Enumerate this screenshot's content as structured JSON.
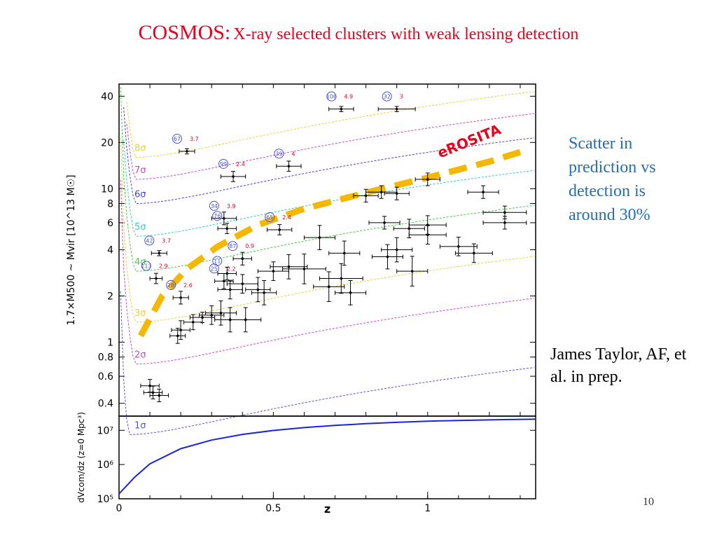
{
  "slide": {
    "title_lead": "COSMOS:",
    "title_rest": "X-ray selected clusters with weak lensing detection",
    "side_note": "Scatter in prediction vs detection is around 30%",
    "credit": "James Taylor, AF, et al. in prep.",
    "page_number": "10"
  },
  "colors": {
    "title": "#e8001c",
    "note": "#1f6fb5",
    "erosita": "#f5b800",
    "volume_curve": "#1a24d8"
  },
  "chart_data": [
    {
      "type": "scatter",
      "xlabel": "z",
      "ylabel": "1.7×M500 ~ Mvir [10^13 M☉]",
      "x_scale": "linear",
      "y_scale": "log",
      "xlim": [
        0,
        1.35
      ],
      "ylim": [
        0.33,
        48
      ],
      "y_ticks": [
        0.4,
        0.6,
        0.8,
        1,
        2,
        4,
        6,
        8,
        10,
        20,
        40
      ],
      "y_tick_labels": [
        "0.4",
        "0.6",
        "0.8",
        "1",
        "2",
        "4",
        "6",
        "8",
        "10",
        "20",
        "40"
      ],
      "grid": false,
      "sigma_curves": [
        {
          "label": "1σ",
          "min": 0.25,
          "zmin": 0.03,
          "color": "#5555cc"
        },
        {
          "label": "2σ",
          "min": 0.72,
          "zmin": 0.05,
          "color": "#cc44cc"
        },
        {
          "label": "3σ",
          "min": 1.35,
          "zmin": 0.05,
          "color": "#e0d33a"
        },
        {
          "label": "4σ",
          "min": 2.9,
          "zmin": 0.05,
          "color": "#44cc44"
        },
        {
          "label": "5σ",
          "min": 4.9,
          "zmin": 0.05,
          "color": "#33cccc"
        },
        {
          "label": "6σ",
          "min": 8.0,
          "zmin": 0.05,
          "color": "#4444cc"
        },
        {
          "label": "7σ",
          "min": 11.5,
          "zmin": 0.05,
          "color": "#cc44cc"
        },
        {
          "label": "8σ",
          "min": 16.0,
          "zmin": 0.05,
          "color": "#e0d33a"
        }
      ],
      "erosita_limit": {
        "label": "eROSITA",
        "x": [
          0.07,
          0.14,
          0.22,
          0.32,
          0.45,
          0.6,
          0.8,
          1.0,
          1.2,
          1.3
        ],
        "y": [
          1.1,
          2.0,
          3.0,
          4.2,
          5.8,
          7.4,
          9.4,
          11.8,
          15.0,
          17.3
        ]
      },
      "points": [
        {
          "x": 0.22,
          "y": 17.5,
          "xerr": 0.025,
          "yerr": 0.04,
          "id": "67",
          "sn": "3.7"
        },
        {
          "x": 0.72,
          "y": 33,
          "xerr": 0.04,
          "yerr": 0.04,
          "id": "106",
          "sn": "4.9"
        },
        {
          "x": 0.9,
          "y": 33,
          "xerr": 0.06,
          "yerr": 0.04,
          "id": "32",
          "sn": "3"
        },
        {
          "x": 0.37,
          "y": 12,
          "xerr": 0.04,
          "yerr": 0.08,
          "id": "99",
          "sn": "2.4"
        },
        {
          "x": 0.55,
          "y": 14,
          "xerr": 0.04,
          "yerr": 0.08,
          "id": "39",
          "sn": "4"
        },
        {
          "x": 0.34,
          "y": 6.4,
          "xerr": 0.04,
          "yerr": 0.1,
          "id": "34",
          "sn": "3.9"
        },
        {
          "x": 0.35,
          "y": 5.5,
          "xerr": 0.03,
          "yerr": 0.08,
          "id": "76",
          "sn": ""
        },
        {
          "x": 0.52,
          "y": 5.4,
          "xerr": 0.04,
          "yerr": 0.08,
          "id": "65",
          "sn": "2.4"
        },
        {
          "x": 0.13,
          "y": 3.8,
          "xerr": 0.025,
          "yerr": 0.04,
          "id": "42",
          "sn": "3.7"
        },
        {
          "x": 0.4,
          "y": 3.5,
          "xerr": 0.03,
          "yerr": 0.1,
          "id": "87",
          "sn": "0.9"
        },
        {
          "x": 0.12,
          "y": 2.6,
          "xerr": 0.02,
          "yerr": 0.08,
          "id": "113",
          "sn": "2.9"
        },
        {
          "x": 0.2,
          "y": 1.95,
          "xerr": 0.025,
          "yerr": 0.1,
          "id": "28",
          "sn": "2.6"
        },
        {
          "x": 0.34,
          "y": 2.5,
          "xerr": 0.03,
          "yerr": 0.12,
          "id": "25",
          "sn": "2.2"
        },
        {
          "x": 0.35,
          "y": 2.8,
          "xerr": 0.03,
          "yerr": 0.1,
          "id": "11",
          "sn": ""
        },
        {
          "x": 0.19,
          "y": 1.1,
          "xerr": 0.025,
          "yerr": 0.12,
          "id": "",
          "sn": ""
        },
        {
          "x": 0.2,
          "y": 1.2,
          "xerr": 0.03,
          "yerr": 0.15,
          "id": "",
          "sn": ""
        },
        {
          "x": 0.24,
          "y": 1.35,
          "xerr": 0.03,
          "yerr": 0.12,
          "id": "",
          "sn": ""
        },
        {
          "x": 0.27,
          "y": 1.45,
          "xerr": 0.04,
          "yerr": 0.08,
          "id": "",
          "sn": ""
        },
        {
          "x": 0.3,
          "y": 1.5,
          "xerr": 0.04,
          "yerr": 0.15,
          "id": "",
          "sn": ""
        },
        {
          "x": 0.33,
          "y": 1.55,
          "xerr": 0.05,
          "yerr": 0.2,
          "id": "",
          "sn": ""
        },
        {
          "x": 0.36,
          "y": 1.4,
          "xerr": 0.05,
          "yerr": 0.2,
          "id": "",
          "sn": ""
        },
        {
          "x": 0.41,
          "y": 1.4,
          "xerr": 0.05,
          "yerr": 0.2,
          "id": "",
          "sn": ""
        },
        {
          "x": 0.1,
          "y": 0.52,
          "xerr": 0.03,
          "yerr": 0.1,
          "id": "",
          "sn": ""
        },
        {
          "x": 0.11,
          "y": 0.47,
          "xerr": 0.03,
          "yerr": 0.1,
          "id": "",
          "sn": ""
        },
        {
          "x": 0.13,
          "y": 0.45,
          "xerr": 0.03,
          "yerr": 0.1,
          "id": "",
          "sn": ""
        },
        {
          "x": 0.36,
          "y": 2.2,
          "xerr": 0.04,
          "yerr": 0.15,
          "id": "",
          "sn": ""
        },
        {
          "x": 0.4,
          "y": 2.4,
          "xerr": 0.05,
          "yerr": 0.15,
          "id": "",
          "sn": ""
        },
        {
          "x": 0.45,
          "y": 2.2,
          "xerr": 0.04,
          "yerr": 0.2,
          "id": "",
          "sn": ""
        },
        {
          "x": 0.47,
          "y": 2.1,
          "xerr": 0.04,
          "yerr": 0.2,
          "id": "",
          "sn": ""
        },
        {
          "x": 0.5,
          "y": 2.9,
          "xerr": 0.05,
          "yerr": 0.15,
          "id": "",
          "sn": ""
        },
        {
          "x": 0.55,
          "y": 3.1,
          "xerr": 0.06,
          "yerr": 0.2,
          "id": "",
          "sn": ""
        },
        {
          "x": 0.6,
          "y": 3.0,
          "xerr": 0.07,
          "yerr": 0.25,
          "id": "",
          "sn": ""
        },
        {
          "x": 0.65,
          "y": 4.8,
          "xerr": 0.05,
          "yerr": 0.2,
          "id": "",
          "sn": ""
        },
        {
          "x": 0.68,
          "y": 2.3,
          "xerr": 0.05,
          "yerr": 0.25,
          "id": "",
          "sn": ""
        },
        {
          "x": 0.72,
          "y": 2.6,
          "xerr": 0.07,
          "yerr": 0.25,
          "id": "",
          "sn": ""
        },
        {
          "x": 0.73,
          "y": 3.8,
          "xerr": 0.05,
          "yerr": 0.2,
          "id": "",
          "sn": ""
        },
        {
          "x": 0.75,
          "y": 2.1,
          "xerr": 0.05,
          "yerr": 0.2,
          "id": "",
          "sn": ""
        },
        {
          "x": 0.8,
          "y": 9.0,
          "xerr": 0.04,
          "yerr": 0.1,
          "id": "",
          "sn": ""
        },
        {
          "x": 0.85,
          "y": 9.5,
          "xerr": 0.05,
          "yerr": 0.1,
          "id": "",
          "sn": ""
        },
        {
          "x": 0.86,
          "y": 6.0,
          "xerr": 0.05,
          "yerr": 0.1,
          "id": "",
          "sn": ""
        },
        {
          "x": 0.87,
          "y": 3.6,
          "xerr": 0.05,
          "yerr": 0.2,
          "id": "",
          "sn": ""
        },
        {
          "x": 0.9,
          "y": 9.3,
          "xerr": 0.04,
          "yerr": 0.1,
          "id": "",
          "sn": ""
        },
        {
          "x": 0.9,
          "y": 4.0,
          "xerr": 0.05,
          "yerr": 0.2,
          "id": "",
          "sn": ""
        },
        {
          "x": 0.94,
          "y": 5.5,
          "xerr": 0.05,
          "yerr": 0.15,
          "id": "",
          "sn": ""
        },
        {
          "x": 0.95,
          "y": 2.9,
          "xerr": 0.05,
          "yerr": 0.25,
          "id": "",
          "sn": ""
        },
        {
          "x": 1.0,
          "y": 11.5,
          "xerr": 0.04,
          "yerr": 0.1,
          "id": "",
          "sn": ""
        },
        {
          "x": 1.0,
          "y": 5.8,
          "xerr": 0.06,
          "yerr": 0.15,
          "id": "",
          "sn": ""
        },
        {
          "x": 1.0,
          "y": 5.0,
          "xerr": 0.06,
          "yerr": 0.15,
          "id": "",
          "sn": ""
        },
        {
          "x": 1.1,
          "y": 4.2,
          "xerr": 0.06,
          "yerr": 0.15,
          "id": "",
          "sn": ""
        },
        {
          "x": 1.15,
          "y": 3.8,
          "xerr": 0.06,
          "yerr": 0.15,
          "id": "",
          "sn": ""
        },
        {
          "x": 1.18,
          "y": 9.5,
          "xerr": 0.05,
          "yerr": 0.1,
          "id": "",
          "sn": ""
        },
        {
          "x": 1.25,
          "y": 7.0,
          "xerr": 0.07,
          "yerr": 0.1,
          "id": "",
          "sn": ""
        },
        {
          "x": 1.25,
          "y": 6.0,
          "xerr": 0.07,
          "yerr": 0.1,
          "id": "",
          "sn": ""
        }
      ]
    },
    {
      "type": "line",
      "xlabel": "z",
      "ylabel": "dVcom/dz (z=0 Mpc³)",
      "x_scale": "linear",
      "y_scale": "log",
      "xlim": [
        0,
        1.35
      ],
      "ylim": [
        100000,
        26000000
      ],
      "x_ticks": [
        0,
        0.5,
        1
      ],
      "x_tick_labels": [
        "0",
        "0.5",
        "1"
      ],
      "y_ticks": [
        100000,
        1000000,
        10000000
      ],
      "y_tick_labels": [
        "10⁵",
        "10⁶",
        "10⁷"
      ],
      "series": [
        {
          "x": [
            0,
            0.05,
            0.1,
            0.2,
            0.3,
            0.4,
            0.5,
            0.6,
            0.7,
            0.8,
            0.9,
            1.0,
            1.1,
            1.2,
            1.35
          ],
          "y": [
            140000,
            420000,
            1050000,
            2900000,
            5200000,
            7600000,
            9900000,
            12000000,
            13900000,
            15600000,
            17100000,
            18400000,
            19400000,
            20200000,
            21200000
          ]
        }
      ]
    }
  ]
}
